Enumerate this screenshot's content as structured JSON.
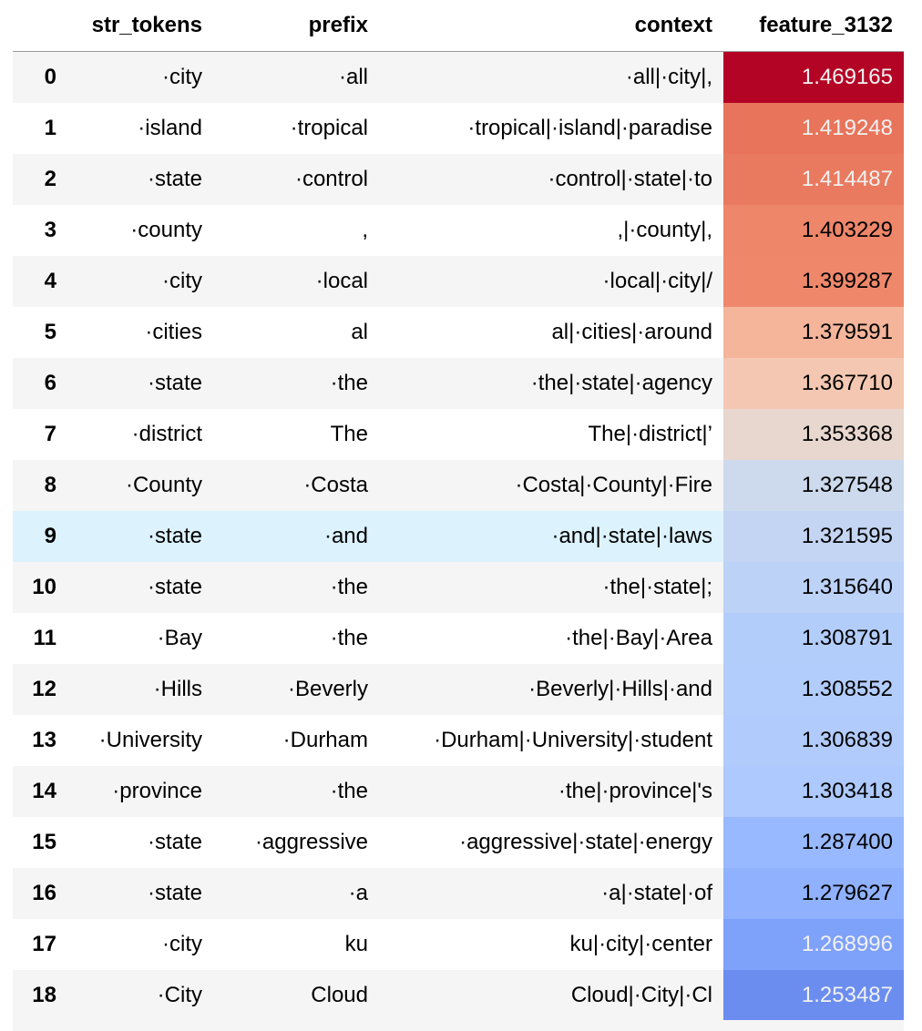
{
  "table": {
    "columns": [
      "str_tokens",
      "prefix",
      "context",
      "feature_3132"
    ],
    "rows": [
      {
        "index": "0",
        "str_tokens": "·city",
        "prefix": "·all",
        "context": "·all|·city|,",
        "feature_3132": "1.469165",
        "bg": "#b40426",
        "fg": "#f1f1f1"
      },
      {
        "index": "1",
        "str_tokens": "·island",
        "prefix": "·tropical",
        "context": "·tropical|·island|·paradise",
        "feature_3132": "1.419248",
        "bg": "#e7745b",
        "fg": "#f1f1f1"
      },
      {
        "index": "2",
        "str_tokens": "·state",
        "prefix": "·control",
        "context": "·control|·state|·to",
        "feature_3132": "1.414487",
        "bg": "#e97a5f",
        "fg": "#f1f1f1"
      },
      {
        "index": "3",
        "str_tokens": "·county",
        "prefix": ",",
        "context": ",|·county|,",
        "feature_3132": "1.403229",
        "bg": "#ee8669",
        "fg": "#000000"
      },
      {
        "index": "4",
        "str_tokens": "·city",
        "prefix": "·local",
        "context": "·local|·city|/",
        "feature_3132": "1.399287",
        "bg": "#ef886b",
        "fg": "#000000"
      },
      {
        "index": "5",
        "str_tokens": "·cities",
        "prefix": "al",
        "context": "al|·cities|·around",
        "feature_3132": "1.379591",
        "bg": "#f4b59b",
        "fg": "#000000"
      },
      {
        "index": "6",
        "str_tokens": "·state",
        "prefix": "·the",
        "context": "·the|·state|·agency",
        "feature_3132": "1.367710",
        "bg": "#f3c7b1",
        "fg": "#000000"
      },
      {
        "index": "7",
        "str_tokens": "·district",
        "prefix": "The",
        "context": "The|·district|’",
        "feature_3132": "1.353368",
        "bg": "#e7d7ce",
        "fg": "#000000"
      },
      {
        "index": "8",
        "str_tokens": "·County",
        "prefix": "·Costa",
        "context": "·Costa|·County|·Fire",
        "feature_3132": "1.327548",
        "bg": "#cdd9ec",
        "fg": "#000000"
      },
      {
        "index": "9",
        "str_tokens": "·state",
        "prefix": "·and",
        "context": "·and|·state|·laws",
        "feature_3132": "1.321595",
        "bg": "#c4d5f3",
        "fg": "#000000"
      },
      {
        "index": "10",
        "str_tokens": "·state",
        "prefix": "·the",
        "context": "·the|·state|;",
        "feature_3132": "1.315640",
        "bg": "#bcd2f7",
        "fg": "#000000"
      },
      {
        "index": "11",
        "str_tokens": "·Bay",
        "prefix": "·the",
        "context": "·the|·Bay|·Area",
        "feature_3132": "1.308791",
        "bg": "#b3cdfb",
        "fg": "#000000"
      },
      {
        "index": "12",
        "str_tokens": "·Hills",
        "prefix": "·Beverly",
        "context": "·Beverly|·Hills|·and",
        "feature_3132": "1.308552",
        "bg": "#b2ccfb",
        "fg": "#000000"
      },
      {
        "index": "13",
        "str_tokens": "·University",
        "prefix": "·Durham",
        "context": "·Durham|·University|·student",
        "feature_3132": "1.306839",
        "bg": "#b1cbfc",
        "fg": "#000000"
      },
      {
        "index": "14",
        "str_tokens": "·province",
        "prefix": "·the",
        "context": "·the|·province|'s",
        "feature_3132": "1.303418",
        "bg": "#adc9fd",
        "fg": "#000000"
      },
      {
        "index": "15",
        "str_tokens": "·state",
        "prefix": "·aggressive",
        "context": "·aggressive|·state|·energy",
        "feature_3132": "1.287400",
        "bg": "#98b9ff",
        "fg": "#000000"
      },
      {
        "index": "16",
        "str_tokens": "·state",
        "prefix": "·a",
        "context": "·a|·state|·of",
        "feature_3132": "1.279627",
        "bg": "#8fb1fe",
        "fg": "#000000"
      },
      {
        "index": "17",
        "str_tokens": "·city",
        "prefix": "ku",
        "context": "ku|·city|·center",
        "feature_3132": "1.268996",
        "bg": "#7ea1fa",
        "fg": "#f1f1f1"
      },
      {
        "index": "18",
        "str_tokens": "·City",
        "prefix": "Cloud",
        "context": "Cloud|·City|·Cl",
        "feature_3132": "1.253487",
        "bg": "#6b8df0",
        "fg": "#f1f1f1"
      }
    ],
    "hover_row_index": 9,
    "colors": {
      "odd_row_bg": "#f5f5f5",
      "even_row_bg": "#ffffff",
      "hover_row_bg": "#dcf2fd",
      "header_border": "#9a9a9a"
    }
  }
}
